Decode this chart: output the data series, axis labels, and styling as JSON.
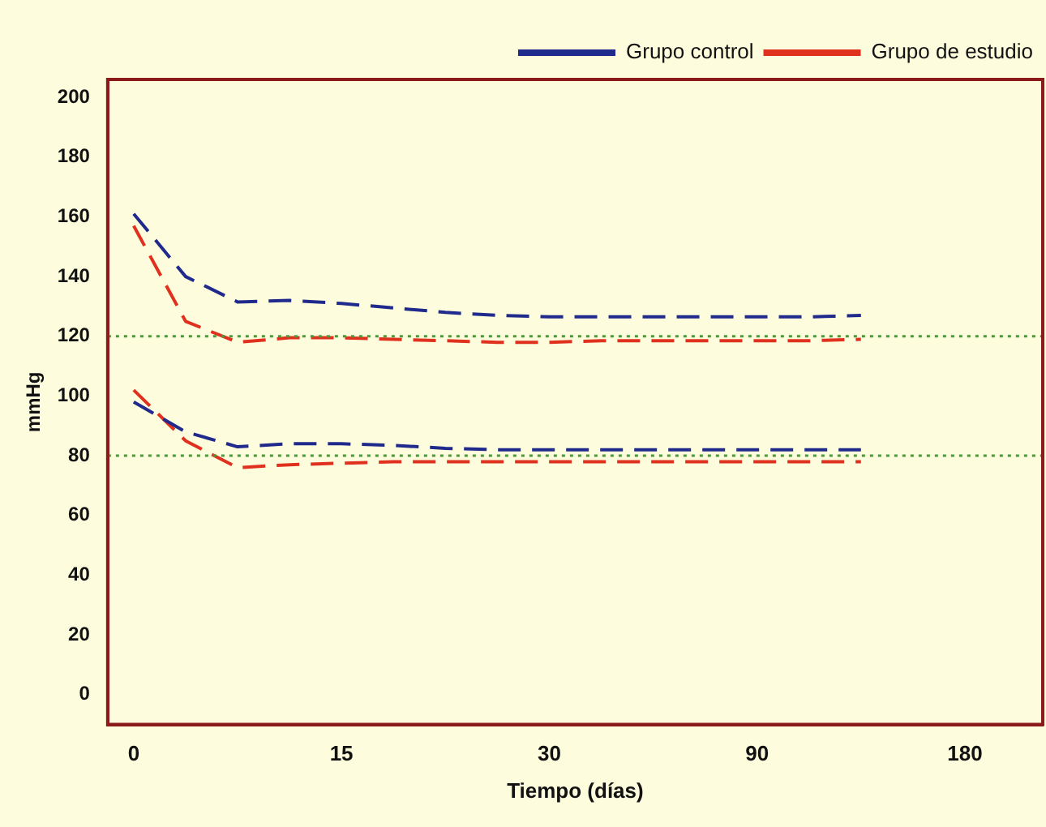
{
  "chart_data": {
    "type": "line",
    "xlabel": "Tiempo (días)",
    "ylabel": "mmHg",
    "categories": [
      "0",
      null,
      null,
      null,
      "15",
      null,
      null,
      null,
      "30",
      null,
      null,
      null,
      "90",
      null,
      null,
      null,
      "180",
      null
    ],
    "series": [
      {
        "name": "Grupo control",
        "color": "#1f2a8c",
        "values": [
          161,
          140,
          131.5,
          132,
          131,
          129.5,
          128,
          127,
          126.5,
          126.5,
          126.5,
          126.5,
          126.5,
          126.5,
          127,
          null,
          null,
          null
        ]
      },
      {
        "name": "Grupo de estudio",
        "color": "#e0301e",
        "values": [
          157,
          125,
          118,
          119.5,
          119.5,
          119,
          118.5,
          118,
          118,
          118.5,
          118.5,
          118.5,
          118.5,
          118.5,
          119,
          null,
          null,
          null
        ]
      },
      {
        "color": "#1f2a8c",
        "values": [
          98,
          88,
          83,
          84,
          84,
          83.5,
          82.5,
          82,
          82,
          82,
          82,
          82,
          82,
          82,
          82,
          null,
          null,
          null
        ]
      },
      {
        "color": "#e0301e",
        "values": [
          102,
          85,
          76,
          77,
          77.5,
          78,
          78,
          78,
          78,
          78,
          78,
          78,
          78,
          78,
          78,
          null,
          null,
          null
        ]
      }
    ],
    "ylim": [
      -10,
      206
    ],
    "yticks": [
      0,
      20,
      40,
      60,
      80,
      100,
      120,
      140,
      160,
      180,
      200
    ],
    "ref_lines": [
      {
        "axis": "y",
        "value": 120,
        "color": "#4a9a3a",
        "line_style": "dotted"
      },
      {
        "axis": "y",
        "value": 80,
        "color": "#4a9a3a",
        "line_style": "dotted"
      }
    ],
    "grid": false,
    "legend": "top right",
    "marker": "none",
    "line_style": "dashed"
  }
}
